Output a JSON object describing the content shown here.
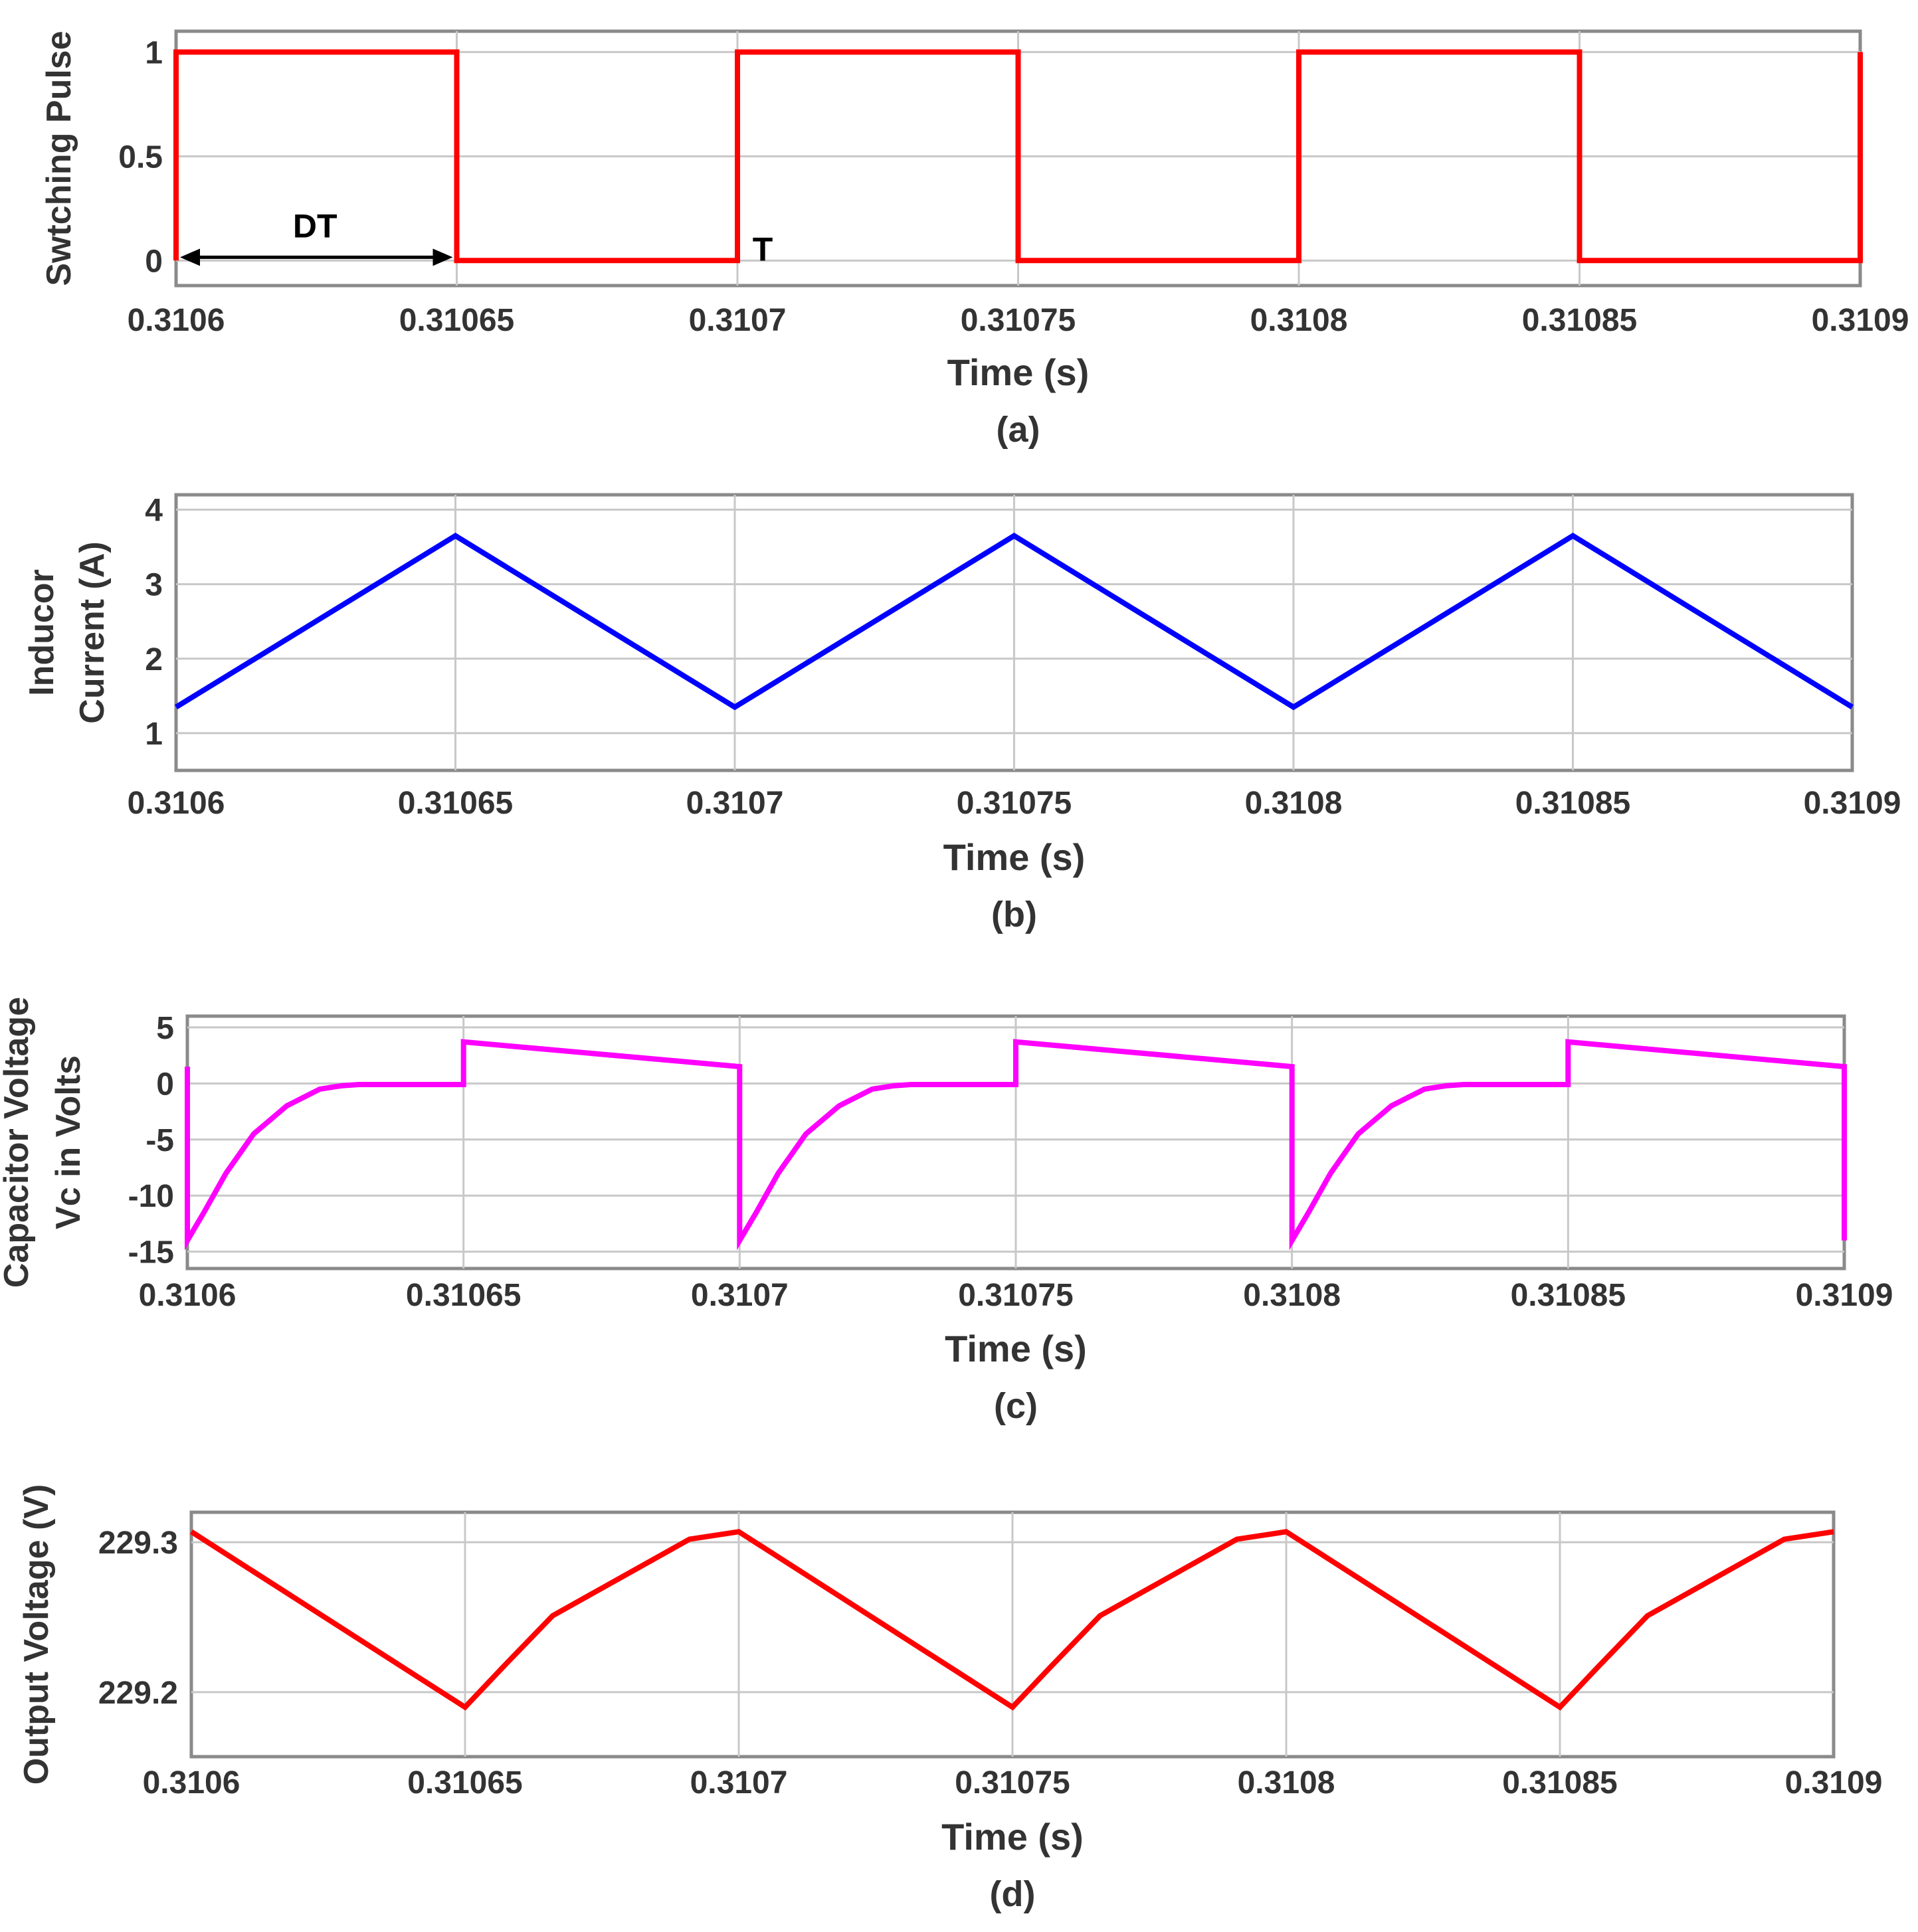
{
  "chart_data": [
    {
      "type": "line",
      "id": "a",
      "caption": "(a)",
      "xlabel": "Time (s)",
      "ylabel": [
        "Swtching Pulse"
      ],
      "xlim": [
        0.3106,
        0.3109
      ],
      "ylim": [
        -0.12,
        1.1
      ],
      "xticks": [
        0.3106,
        0.31065,
        0.3107,
        0.31075,
        0.3108,
        0.31085,
        0.3109
      ],
      "xtick_labels": [
        "0.3106",
        "0.31065",
        "0.3107",
        "0.31075",
        "0.3108",
        "0.31085",
        "0.3109"
      ],
      "yticks": [
        0,
        0.5,
        1
      ],
      "ytick_labels": [
        "0",
        "0.5",
        "1"
      ],
      "grid": true,
      "series": [
        {
          "name": "Switching pulse",
          "color": "#ff0000",
          "x": [
            0.3106,
            0.3106,
            0.31065,
            0.31065,
            0.3107,
            0.3107,
            0.31075,
            0.31075,
            0.3108,
            0.3108,
            0.31085,
            0.31085,
            0.3109,
            0.3109
          ],
          "y": [
            0,
            1,
            1,
            0,
            0,
            1,
            1,
            0,
            0,
            1,
            1,
            0,
            0,
            1
          ]
        }
      ],
      "annotations": [
        {
          "text": "DT",
          "kind": "double-arrow",
          "x_from": 0.3106,
          "x_to": 0.31065,
          "y": 0
        },
        {
          "text": "T",
          "kind": "label",
          "x": 0.3107,
          "y": 0
        }
      ]
    },
    {
      "type": "line",
      "id": "b",
      "caption": "(b)",
      "xlabel": "Time (s)",
      "ylabel": [
        "Inducor",
        "Current (A)"
      ],
      "xlim": [
        0.3106,
        0.3109
      ],
      "ylim": [
        0.5,
        4.2
      ],
      "xticks": [
        0.3106,
        0.31065,
        0.3107,
        0.31075,
        0.3108,
        0.31085,
        0.3109
      ],
      "xtick_labels": [
        "0.3106",
        "0.31065",
        "0.3107",
        "0.31075",
        "0.3108",
        "0.31085",
        "0.3109"
      ],
      "yticks": [
        1,
        2,
        3,
        4
      ],
      "ytick_labels": [
        "1",
        "2",
        "3",
        "4"
      ],
      "grid": true,
      "series": [
        {
          "name": "Inductor current",
          "color": "#0000ff",
          "x": [
            0.3106,
            0.31065,
            0.3107,
            0.31075,
            0.3108,
            0.31085,
            0.3109
          ],
          "y": [
            1.35,
            3.65,
            1.35,
            3.65,
            1.35,
            3.65,
            1.35
          ]
        }
      ]
    },
    {
      "type": "line",
      "id": "c",
      "caption": "(c)",
      "xlabel": "Time (s)",
      "ylabel": [
        "Capacitor Voltage",
        "Vc  in Volts"
      ],
      "xlim": [
        0.3106,
        0.3109
      ],
      "ylim": [
        -16.5,
        6
      ],
      "xticks": [
        0.3106,
        0.31065,
        0.3107,
        0.31075,
        0.3108,
        0.31085,
        0.3109
      ],
      "xtick_labels": [
        "0.3106",
        "0.31065",
        "0.3107",
        "0.31075",
        "0.3108",
        "0.31085",
        "0.3109"
      ],
      "yticks": [
        -15,
        -10,
        -5,
        0,
        5
      ],
      "ytick_labels": [
        "-15",
        "-10",
        "-5",
        "0",
        "5"
      ],
      "grid": true,
      "series": [
        {
          "name": "Capacitor voltage",
          "color": "#ff00ff",
          "x": [
            0.3106,
            0.3106,
            0.310603,
            0.310607,
            0.310612,
            0.310618,
            0.310624,
            0.310628,
            0.310631,
            0.31065,
            0.31065,
            0.3107,
            0.3107,
            0.310703,
            0.310707,
            0.310712,
            0.310718,
            0.310724,
            0.310728,
            0.310731,
            0.31075,
            0.31075,
            0.3108,
            0.3108,
            0.310803,
            0.310807,
            0.310812,
            0.310818,
            0.310824,
            0.310828,
            0.310831,
            0.31085,
            0.31085,
            0.3109,
            0.3109
          ],
          "y": [
            1.5,
            -14,
            -11.5,
            -8,
            -4.5,
            -2,
            -0.5,
            -0.2,
            -0.1,
            -0.1,
            3.7,
            1.5,
            -14,
            -11.5,
            -8,
            -4.5,
            -2,
            -0.5,
            -0.2,
            -0.1,
            -0.1,
            3.7,
            1.5,
            -14,
            -11.5,
            -8,
            -4.5,
            -2,
            -0.5,
            -0.2,
            -0.1,
            -0.1,
            3.7,
            1.5,
            -14
          ]
        }
      ]
    },
    {
      "type": "line",
      "id": "d",
      "caption": "(d)",
      "xlabel": "Time (s)",
      "ylabel": [
        "Output Voltage (V)"
      ],
      "xlim": [
        0.3106,
        0.3109
      ],
      "ylim": [
        229.157,
        229.32
      ],
      "xticks": [
        0.3106,
        0.31065,
        0.3107,
        0.31075,
        0.3108,
        0.31085,
        0.3109
      ],
      "xtick_labels": [
        "0.3106",
        "0.31065",
        "0.3107",
        "0.31075",
        "0.3108",
        "0.31085",
        "0.3109"
      ],
      "yticks": [
        229.2,
        229.3
      ],
      "ytick_labels": [
        "229.2",
        "229.3"
      ],
      "grid": true,
      "series": [
        {
          "name": "Output voltage",
          "color": "#ff0000",
          "x": [
            0.3106,
            0.31065,
            0.310657,
            0.310666,
            0.310691,
            0.3107,
            0.31075,
            0.310757,
            0.310766,
            0.310791,
            0.3108,
            0.31085,
            0.310857,
            0.310866,
            0.310891,
            0.3109
          ],
          "y": [
            229.307,
            229.19,
            229.217,
            229.251,
            229.302,
            229.307,
            229.19,
            229.217,
            229.251,
            229.302,
            229.307,
            229.19,
            229.217,
            229.251,
            229.302,
            229.307
          ]
        }
      ]
    }
  ]
}
